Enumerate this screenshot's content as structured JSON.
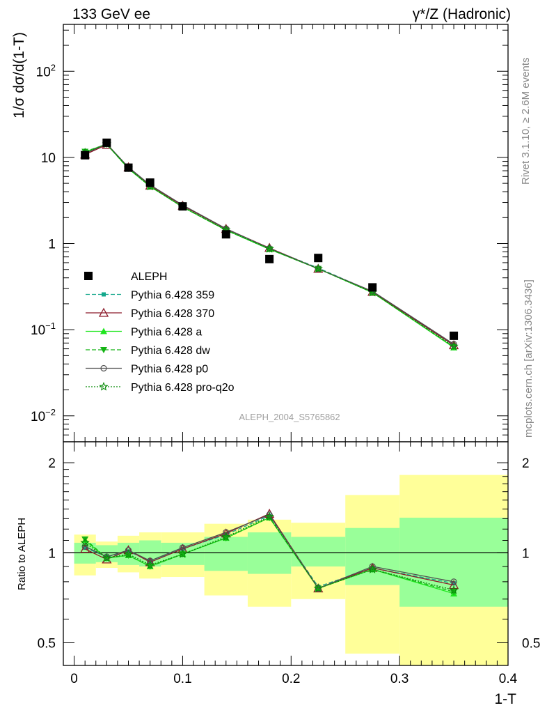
{
  "header": {
    "left": "133 GeV ee",
    "right": "γ*/Z (Hadronic)"
  },
  "side_labels": {
    "rivet": "Rivet 3.1.10, ≥ 2.6M events",
    "mcplots": "mcplots.cern.ch [arXiv:1306.3436]"
  },
  "watermark": "ALEPH_2004_S5765862",
  "chart_data": [
    {
      "type": "scatter",
      "role": "main",
      "ylabel": "1/σ  dσ/d(1-T)",
      "yscale": "log",
      "ylim": [
        0.005,
        350
      ],
      "xlim": [
        -0.01,
        0.4
      ],
      "yticks_major": [
        {
          "value": 0.01,
          "base": "10",
          "exp": "−2"
        },
        {
          "value": 0.1,
          "base": "10",
          "exp": "−1"
        },
        {
          "value": 1,
          "base": "1",
          "exp": ""
        },
        {
          "value": 10,
          "base": "10",
          "exp": ""
        },
        {
          "value": 100,
          "base": "10",
          "exp": "2"
        }
      ],
      "data_series": {
        "name": "ALEPH",
        "x": [
          0.01,
          0.03,
          0.05,
          0.07,
          0.1,
          0.14,
          0.18,
          0.225,
          0.275,
          0.35
        ],
        "y": [
          10.6,
          14.8,
          7.6,
          5.1,
          2.7,
          1.28,
          0.66,
          0.68,
          0.31,
          0.085
        ]
      },
      "series": [
        {
          "name": "Pythia 6.428 359",
          "color": "#14a88c",
          "dash": "6,3",
          "marker": "square-small",
          "y": [
            11.0,
            14.3,
            7.6,
            4.7,
            2.75,
            1.47,
            0.88,
            0.52,
            0.275,
            0.066
          ]
        },
        {
          "name": "Pythia 6.428 370",
          "color": "#8c1a2a",
          "dash": "",
          "marker": "triangle-open",
          "y": [
            10.8,
            14.0,
            7.7,
            4.7,
            2.75,
            1.48,
            0.89,
            0.51,
            0.275,
            0.066
          ]
        },
        {
          "name": "Pythia 6.428 a",
          "color": "#1ee61e",
          "dash": "",
          "marker": "triangle-filled",
          "y": [
            11.6,
            14.3,
            7.4,
            4.6,
            2.65,
            1.43,
            0.86,
            0.51,
            0.27,
            0.062
          ]
        },
        {
          "name": "Pythia 6.428 dw",
          "color": "#14b414",
          "dash": "6,3",
          "marker": "triangle-down-filled",
          "y": [
            11.7,
            14.2,
            7.4,
            4.6,
            2.65,
            1.43,
            0.86,
            0.51,
            0.27,
            0.063
          ]
        },
        {
          "name": "Pythia 6.428 p0",
          "color": "#505050",
          "dash": "",
          "marker": "circle-open",
          "y": [
            11.1,
            14.4,
            7.7,
            4.8,
            2.8,
            1.49,
            0.88,
            0.51,
            0.28,
            0.068
          ]
        },
        {
          "name": "Pythia 6.428 pro-q2o",
          "color": "#0a8c0a",
          "dash": "2,2",
          "marker": "star-open",
          "y": [
            11.4,
            14.3,
            7.5,
            4.6,
            2.67,
            1.44,
            0.87,
            0.51,
            0.27,
            0.064
          ]
        }
      ]
    },
    {
      "type": "scatter",
      "role": "ratio",
      "xlabel": "1-T",
      "ylabel": "Ratio to ALEPH",
      "yscale": "log",
      "ylim": [
        0.42,
        2.35
      ],
      "xlim": [
        -0.01,
        0.4
      ],
      "xticks": [
        0,
        0.1,
        0.2,
        0.3,
        0.4
      ],
      "xtick_labels": [
        "0",
        "0.1",
        "0.2",
        "0.3",
        "0.4"
      ],
      "yticks": [
        0.5,
        1,
        2
      ],
      "ytick_labels": [
        "0.5",
        "1",
        "2"
      ],
      "bins": [
        0,
        0.02,
        0.04,
        0.06,
        0.08,
        0.12,
        0.16,
        0.2,
        0.25,
        0.3,
        0.4
      ],
      "band_stat": [
        [
          0.92,
          1.08
        ],
        [
          0.93,
          1.06
        ],
        [
          0.91,
          1.08
        ],
        [
          0.9,
          1.1
        ],
        [
          0.91,
          1.08
        ],
        [
          0.87,
          1.13
        ],
        [
          0.85,
          1.17
        ],
        [
          0.9,
          1.13
        ],
        [
          0.78,
          1.21
        ],
        [
          0.66,
          1.31
        ]
      ],
      "band_total": [
        [
          0.84,
          1.15
        ],
        [
          0.89,
          1.09
        ],
        [
          0.86,
          1.14
        ],
        [
          0.82,
          1.17
        ],
        [
          0.83,
          1.17
        ],
        [
          0.72,
          1.25
        ],
        [
          0.66,
          1.29
        ],
        [
          0.7,
          1.26
        ],
        [
          0.46,
          1.56
        ],
        [
          0.38,
          1.82
        ]
      ],
      "x": [
        0.01,
        0.03,
        0.05,
        0.07,
        0.1,
        0.14,
        0.18,
        0.225,
        0.275,
        0.35
      ],
      "series": [
        {
          "name": "Pythia 6.428 359",
          "values": [
            1.04,
            0.97,
            1.01,
            0.94,
            1.03,
            1.15,
            1.33,
            0.77,
            0.89,
            0.79
          ]
        },
        {
          "name": "Pythia 6.428 370",
          "values": [
            1.03,
            0.95,
            1.02,
            0.93,
            1.03,
            1.16,
            1.35,
            0.76,
            0.89,
            0.78
          ]
        },
        {
          "name": "Pythia 6.428 a",
          "values": [
            1.1,
            0.96,
            0.98,
            0.9,
            0.99,
            1.12,
            1.31,
            0.76,
            0.88,
            0.73
          ]
        },
        {
          "name": "Pythia 6.428 dw",
          "values": [
            1.11,
            0.96,
            0.98,
            0.9,
            0.99,
            1.12,
            1.31,
            0.76,
            0.88,
            0.74
          ]
        },
        {
          "name": "Pythia 6.428 p0",
          "values": [
            1.05,
            0.97,
            1.02,
            0.94,
            1.04,
            1.17,
            1.34,
            0.76,
            0.9,
            0.8
          ]
        },
        {
          "name": "Pythia 6.428 pro-q2o",
          "values": [
            1.08,
            0.96,
            0.99,
            0.91,
            0.99,
            1.13,
            1.32,
            0.76,
            0.88,
            0.75
          ]
        }
      ]
    }
  ],
  "colors": {
    "band_stat": "#99ff99",
    "band_total": "#ffff99",
    "axis": "#000000"
  }
}
